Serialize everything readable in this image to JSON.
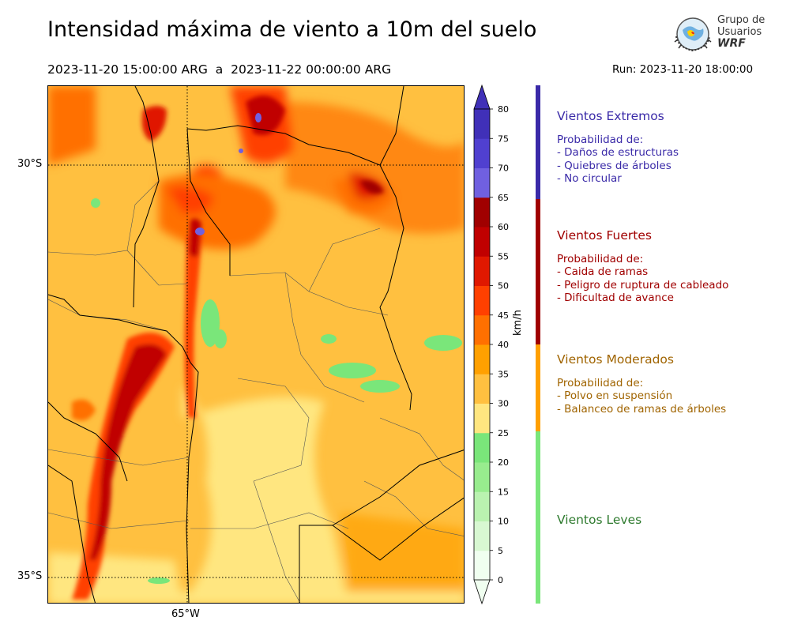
{
  "header": {
    "title": "Intensidad máxima de viento a 10m del suelo",
    "period_start": "2023-11-20 15:00:00 ARG",
    "period_sep": "a",
    "period_end": "2023-11-22 00:00:00 ARG",
    "run_label": "Run: 2023-11-20 18:00:00"
  },
  "logo": {
    "line1": "Grupo de",
    "line2": "Usuarios",
    "line3": "WRF"
  },
  "map": {
    "lat_labels": [
      "30°S",
      "35°S"
    ],
    "lon_labels": [
      "65°W"
    ],
    "gridlines": "dotted"
  },
  "colorbar": {
    "unit": "km/h",
    "ticks": [
      "0",
      "5",
      "10",
      "15",
      "20",
      "25",
      "30",
      "35",
      "40",
      "45",
      "50",
      "55",
      "60",
      "65",
      "70",
      "75",
      "80"
    ],
    "colors": [
      "#f0fff0",
      "#d8f8d2",
      "#baf2b0",
      "#98ec8e",
      "#7ae67a",
      "#ffe680",
      "#ffc040",
      "#ffa000",
      "#ff7000",
      "#ff4000",
      "#e01800",
      "#c00000",
      "#a00000",
      "#7060e0",
      "#5040d0",
      "#4030b8"
    ],
    "extend": "both"
  },
  "categories": [
    {
      "title": "Vientos Extremos",
      "color": "#3a2aa8",
      "desc_heading": "Probabilidad de:",
      "items": [
        "- Daños de estructuras",
        "- Quiebres de árboles",
        "- No circular"
      ]
    },
    {
      "title": "Vientos Fuertes",
      "color": "#a00000",
      "desc_heading": "Probabilidad de:",
      "items": [
        "- Caida de ramas",
        "- Peligro de ruptura de cableado",
        "- Dificultad de avance"
      ]
    },
    {
      "title": "Vientos Moderados",
      "color": "#a06400",
      "desc_heading": "Probabilidad de:",
      "items": [
        "- Polvo en suspensión",
        "- Balanceo de ramas de árboles"
      ]
    },
    {
      "title": "Vientos Leves",
      "color": "#2e7a2e",
      "desc_heading": "",
      "items": []
    }
  ],
  "strip_colors": [
    "#3a2aa8",
    "#a00000",
    "#ffa000",
    "#7ae67a"
  ]
}
